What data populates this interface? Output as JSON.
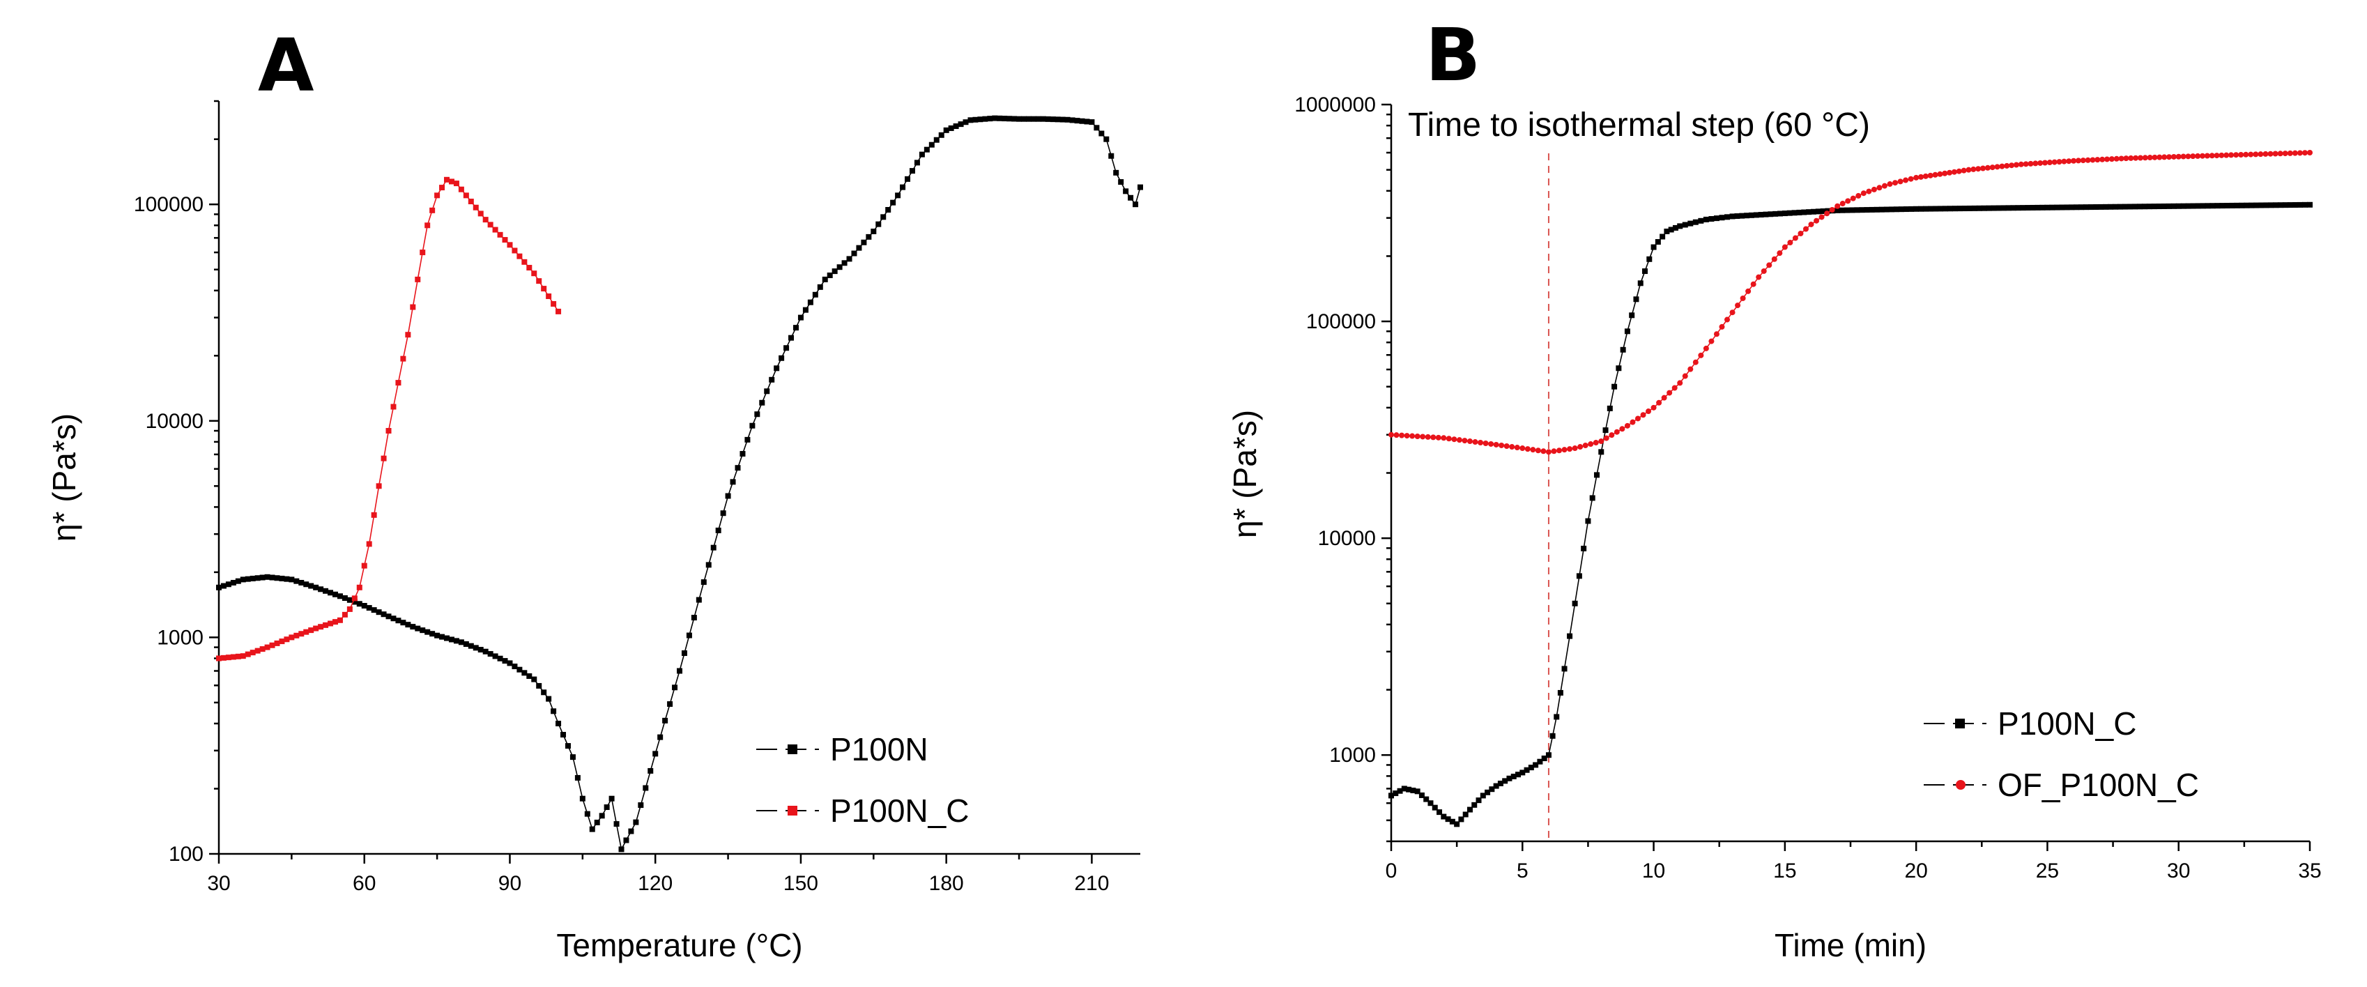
{
  "chart_data": [
    {
      "panel": "A",
      "type": "scatter",
      "xlabel": "Temperature (°C)",
      "ylabel": "η* (Pa*s)",
      "xlim": [
        30,
        220
      ],
      "ylim": [
        100,
        300000
      ],
      "yscale": "log",
      "x_ticks": [
        "30",
        "60",
        "90",
        "120",
        "150",
        "180",
        "210"
      ],
      "y_ticks": [
        "100",
        "1000",
        "10000",
        "100000"
      ],
      "legend_placement": "bottom-right",
      "series": [
        {
          "name": "P100N",
          "color": "#000000",
          "marker": "square",
          "x": [
            30,
            35,
            40,
            45,
            50,
            55,
            60,
            65,
            70,
            75,
            80,
            85,
            90,
            95,
            98,
            100,
            103,
            105,
            107,
            109,
            111,
            113,
            116,
            120,
            125,
            130,
            135,
            140,
            145,
            150,
            155,
            160,
            165,
            170,
            175,
            180,
            185,
            190,
            195,
            200,
            205,
            210,
            213,
            215,
            217,
            219,
            220
          ],
          "values": [
            1700,
            1850,
            1900,
            1850,
            1700,
            1550,
            1400,
            1250,
            1120,
            1020,
            950,
            860,
            760,
            640,
            520,
            400,
            280,
            180,
            130,
            150,
            180,
            105,
            140,
            290,
            700,
            1800,
            4500,
            9500,
            17500,
            30000,
            45000,
            56000,
            75000,
            110000,
            170000,
            220000,
            245000,
            250000,
            248000,
            248000,
            246000,
            240000,
            200000,
            140000,
            115000,
            100000,
            120000
          ]
        },
        {
          "name": "P100N_C",
          "color": "#e8141b",
          "marker": "square",
          "x": [
            30,
            35,
            40,
            45,
            50,
            55,
            57,
            59,
            61,
            63,
            65,
            67,
            69,
            71,
            73,
            75,
            77,
            79,
            81,
            85,
            90,
            95,
            100
          ],
          "values": [
            800,
            820,
            900,
            1000,
            1100,
            1200,
            1350,
            1700,
            2700,
            5000,
            9000,
            15000,
            25000,
            45000,
            80000,
            110000,
            130000,
            125000,
            110000,
            85000,
            65000,
            48000,
            32000
          ]
        }
      ]
    },
    {
      "panel": "B",
      "type": "scatter",
      "xlabel": "Time (min)",
      "ylabel": "η* (Pa*s)",
      "xlim": [
        0,
        35
      ],
      "ylim": [
        400,
        1000000
      ],
      "yscale": "log",
      "x_ticks": [
        "0",
        "5",
        "10",
        "15",
        "20",
        "25",
        "30",
        "35"
      ],
      "y_ticks": [
        "1000",
        "10000",
        "100000",
        "1000000"
      ],
      "legend_placement": "bottom-right",
      "annotation": "Time to isothermal step (60 °C)",
      "vline_x": 6,
      "series": [
        {
          "name": "P100N_C",
          "color": "#000000",
          "marker": "square",
          "x": [
            0,
            0.5,
            1,
            1.5,
            2,
            2.5,
            3,
            3.5,
            4,
            4.5,
            5,
            5.5,
            6,
            6.3,
            6.6,
            7,
            7.5,
            8,
            8.5,
            9,
            9.5,
            10,
            10.5,
            11,
            12,
            13,
            15,
            17,
            20,
            25,
            30,
            35
          ],
          "values": [
            650,
            700,
            680,
            600,
            520,
            480,
            560,
            650,
            720,
            780,
            830,
            900,
            1000,
            1500,
            2500,
            5000,
            12000,
            25000,
            50000,
            90000,
            150000,
            220000,
            260000,
            275000,
            295000,
            305000,
            315000,
            325000,
            330000,
            335000,
            340000,
            345000
          ]
        },
        {
          "name": "OF_P100N_C",
          "color": "#e8141b",
          "marker": "circle",
          "x": [
            0,
            1,
            2,
            3,
            4,
            5,
            6,
            7,
            8,
            9,
            10,
            11,
            12,
            13,
            14,
            15,
            16,
            17,
            18,
            19,
            20,
            22,
            24,
            26,
            28,
            30,
            32,
            35
          ],
          "values": [
            30000,
            29500,
            29000,
            28000,
            27000,
            26000,
            25000,
            26000,
            28000,
            33000,
            40000,
            52000,
            75000,
            110000,
            160000,
            220000,
            280000,
            340000,
            390000,
            430000,
            460000,
            500000,
            530000,
            550000,
            565000,
            575000,
            585000,
            600000
          ]
        }
      ]
    }
  ]
}
